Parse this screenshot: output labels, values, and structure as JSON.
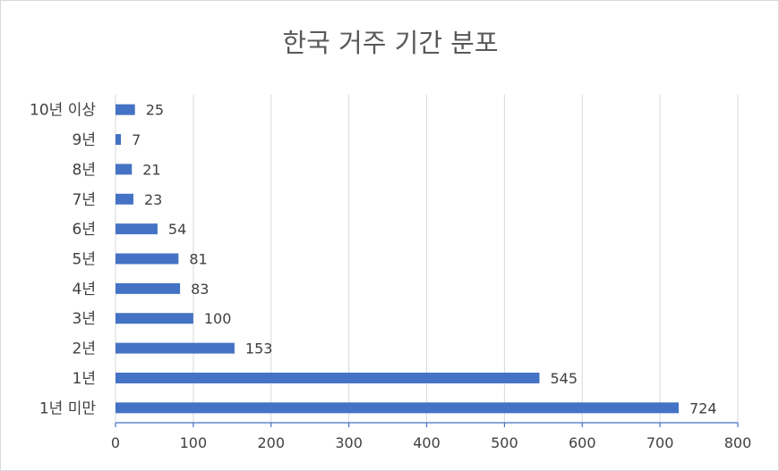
{
  "chart_data": {
    "type": "bar",
    "orientation": "horizontal",
    "title": "한국 거주 기간 분포",
    "categories": [
      "1년 미만",
      "1년",
      "2년",
      "3년",
      "4년",
      "5년",
      "6년",
      "7년",
      "8년",
      "9년",
      "10년 이상"
    ],
    "values": [
      724,
      545,
      153,
      100,
      83,
      81,
      54,
      23,
      21,
      7,
      25
    ],
    "xlim": [
      0,
      800
    ],
    "xticks": [
      0,
      100,
      200,
      300,
      400,
      500,
      600,
      700,
      800
    ],
    "xlabel": "",
    "ylabel": "",
    "grid": "vertical",
    "legend": "none",
    "data_labels": true,
    "bar_color": "#4472c4",
    "text_color": "#404040",
    "title_color": "#595959",
    "grid_color": "#d9d9d9"
  }
}
